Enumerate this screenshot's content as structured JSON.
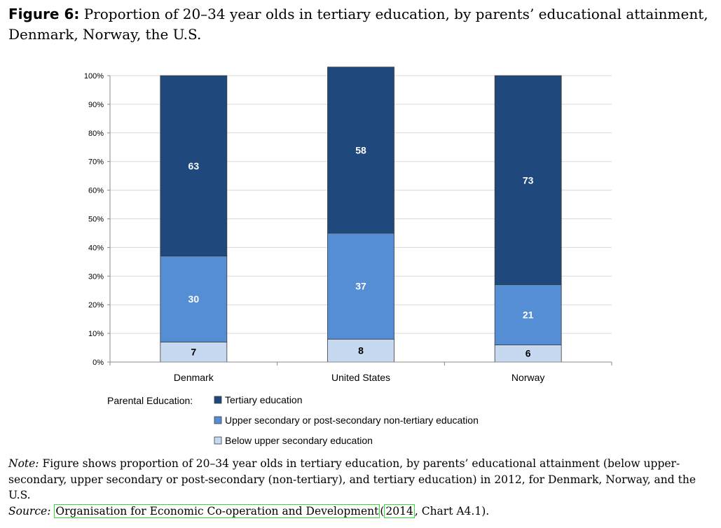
{
  "title": {
    "label": "Figure 6:",
    "text": "Proportion of 20–34 year olds in tertiary education, by parents’ educational attainment, Denmark, Norway, the U.S."
  },
  "chart_data": {
    "type": "bar",
    "stacked": true,
    "categories": [
      "Denmark",
      "United States",
      "Norway"
    ],
    "series": [
      {
        "name": "Below upper secondary education",
        "values": [
          7,
          8,
          6
        ],
        "color": "#c6d9f1",
        "label_color": "#000000"
      },
      {
        "name": "Upper secondary or post-secondary non-tertiary education",
        "values": [
          30,
          37,
          21
        ],
        "color": "#558ed5",
        "label_color": "#ffffff"
      },
      {
        "name": "Tertiary education",
        "values": [
          63,
          58,
          73
        ],
        "color": "#1f497d",
        "label_color": "#ffffff"
      }
    ],
    "yticks": [
      "0%",
      "10%",
      "20%",
      "30%",
      "40%",
      "50%",
      "60%",
      "70%",
      "80%",
      "90%",
      "100%"
    ],
    "ylim": [
      0,
      100
    ],
    "grid": true,
    "legend_title": "Parental Education:",
    "legend_order": [
      2,
      1,
      0
    ],
    "legend_position": "bottom"
  },
  "note": {
    "label": "Note:",
    "text": "Figure shows proportion of 20–34 year olds in tertiary education, by parents’ educational attainment (below upper-secondary, upper secondary or post-secondary (non-tertiary), and tertiary education) in 2012, for Denmark, Norway, and the U.S."
  },
  "source": {
    "label": "Source:",
    "org_link": "Organisation for Economic Co-operation and Development",
    "open_paren": "(",
    "year_link": "2014",
    "rest": ", Chart A4.1)."
  }
}
